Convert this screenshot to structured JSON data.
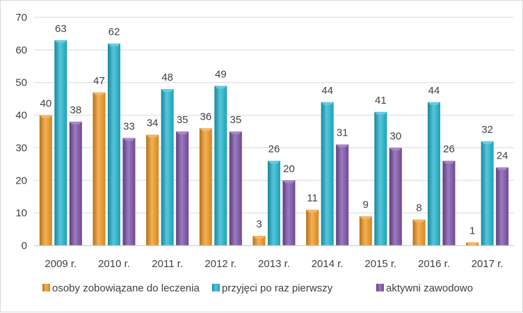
{
  "chart_data": {
    "type": "bar",
    "title": "",
    "xlabel": "",
    "ylabel": "",
    "ylim": [
      0,
      70
    ],
    "yticks": [
      0,
      10,
      20,
      30,
      40,
      50,
      60,
      70
    ],
    "grid": true,
    "legend_position": "bottom",
    "categories": [
      "2009 r.",
      "2010 r.",
      "2011 r.",
      "2012 r.",
      "2013 r.",
      "2014 r.",
      "2015 r.",
      "2016 r.",
      "2017 r."
    ],
    "series": [
      {
        "name": "osoby zobowiązane do leczenia",
        "color": "#f0961e",
        "values": [
          40,
          47,
          34,
          36,
          3,
          11,
          9,
          8,
          1
        ]
      },
      {
        "name": "przyjęci po raz pierwszy",
        "color": "#1fb3cf",
        "values": [
          63,
          62,
          48,
          49,
          26,
          44,
          41,
          44,
          32
        ]
      },
      {
        "name": "aktywni zawodowo",
        "color": "#7b4fa8",
        "values": [
          38,
          33,
          35,
          35,
          20,
          31,
          30,
          26,
          24
        ]
      }
    ]
  }
}
